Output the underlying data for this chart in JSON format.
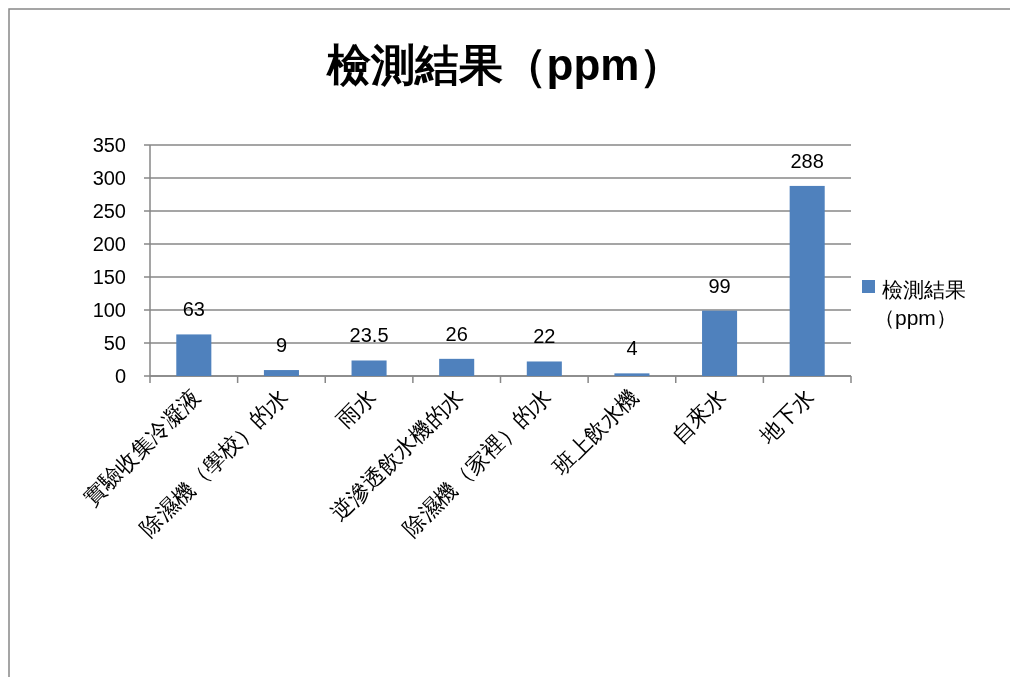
{
  "chart_data": {
    "type": "bar",
    "title": "檢測結果（ppm）",
    "categories": [
      "實驗收集冷凝液",
      "除濕機（學校）的水",
      "雨水",
      "逆滲透飲水機的水",
      "除濕機（家裡）的水",
      "班上飲水機",
      "自來水",
      "地下水"
    ],
    "series": [
      {
        "name": "檢測結果（ppm）",
        "color": "#4f81bd",
        "values": [
          63,
          9,
          23.5,
          26,
          22,
          4,
          99,
          288
        ]
      }
    ],
    "ylim": [
      0,
      350
    ],
    "yticks": [
      0,
      50,
      100,
      150,
      200,
      250,
      300,
      350
    ],
    "grid": "y",
    "legend": "right",
    "data_labels": true
  }
}
